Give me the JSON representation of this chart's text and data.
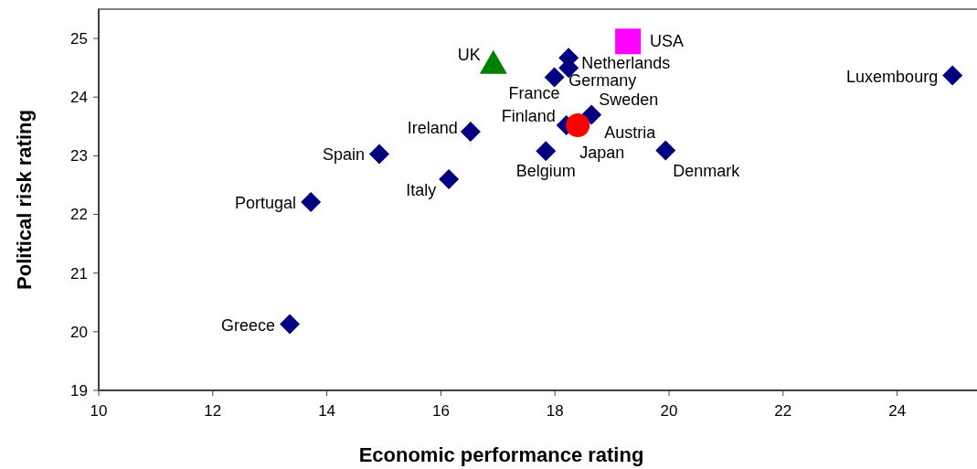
{
  "chart_data": {
    "type": "scatter",
    "xlabel": "Economic performance rating",
    "ylabel": "Political risk rating",
    "xlim": [
      10,
      25.4
    ],
    "xticks": [
      10,
      12,
      14,
      16,
      18,
      20,
      22,
      24
    ],
    "ylim": [
      19,
      25.5
    ],
    "yticks": [
      19,
      20,
      21,
      22,
      23,
      24,
      25
    ],
    "grid": false,
    "series": [
      {
        "color": "#000080",
        "marker": "diamond",
        "x": [
          13.35,
          13.72,
          14.92,
          16.14,
          16.52,
          17.99,
          18.24,
          18.24,
          18.2,
          18.64,
          17.84,
          19.94,
          24.97
        ],
        "values": [
          20.13,
          22.21,
          23.03,
          22.6,
          23.41,
          24.34,
          24.67,
          24.5,
          23.52,
          23.7,
          23.08,
          23.09,
          24.37
        ]
      },
      {
        "name": "UK",
        "color": "#008000",
        "marker": "triangle",
        "x": [
          16.92
        ],
        "values": [
          24.6
        ]
      },
      {
        "name": "USA",
        "color": "#ff00ff",
        "marker": "square",
        "x": [
          19.28
        ],
        "values": [
          24.95
        ]
      },
      {
        "name": "Japan",
        "color": "#ff0000",
        "marker": "circle",
        "x": [
          18.4
        ],
        "values": [
          23.52
        ]
      }
    ],
    "annotations": [
      {
        "text": "Greece",
        "x": 13.35,
        "y": 20.13
      },
      {
        "text": "Portugal",
        "x": 13.72,
        "y": 22.21
      },
      {
        "text": "Spain",
        "x": 14.92,
        "y": 23.03
      },
      {
        "text": "Italy",
        "x": 16.14,
        "y": 22.6
      },
      {
        "text": "Ireland",
        "x": 16.52,
        "y": 23.41
      },
      {
        "text": "France",
        "x": 17.99,
        "y": 24.34
      },
      {
        "text": "Netherlands",
        "x": 18.24,
        "y": 24.67
      },
      {
        "text": "Germany",
        "x": 18.24,
        "y": 24.5
      },
      {
        "text": "Finland",
        "x": 18.2,
        "y": 23.52
      },
      {
        "text": "Sweden",
        "x": 18.64,
        "y": 23.7
      },
      {
        "text": "Belgium",
        "x": 17.84,
        "y": 23.08
      },
      {
        "text": "Denmark",
        "x": 19.94,
        "y": 23.09
      },
      {
        "text": "Luxembourg",
        "x": 24.97,
        "y": 24.37
      },
      {
        "text": "Austria",
        "x": 18.45,
        "y": 23.52
      }
    ]
  }
}
